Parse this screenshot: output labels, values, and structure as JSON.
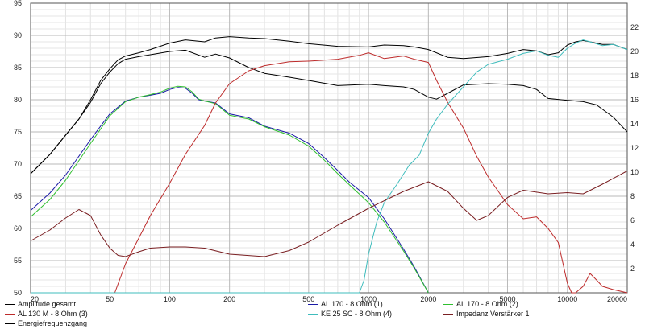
{
  "chart_data": {
    "type": "line",
    "x_scale": "log",
    "xlim": [
      20,
      20000
    ],
    "ylim_left": [
      50,
      95
    ],
    "ylim_right": [
      0,
      24
    ],
    "grid": true,
    "x_ticks": [
      "20",
      "50",
      "100",
      "200",
      "500",
      "1000",
      "2000",
      "5000",
      "10000",
      "20000"
    ],
    "y_ticks_left": [
      "95",
      "90",
      "85",
      "80",
      "75",
      "70",
      "65",
      "60",
      "55",
      "50"
    ],
    "y_ticks_right": [
      "22",
      "20",
      "18",
      "16",
      "14",
      "12",
      "10",
      "8",
      "6",
      "4",
      "2"
    ],
    "series": [
      {
        "name": "Amplitude gesamt",
        "axis": "left",
        "color": "#000000",
        "x": [
          20,
          25,
          30,
          35,
          40,
          45,
          50,
          55,
          60,
          70,
          80,
          100,
          120,
          150,
          170,
          200,
          250,
          300,
          400,
          500,
          700,
          1000,
          1200,
          1500,
          1700,
          2000,
          2500,
          3000,
          4000,
          5000,
          6000,
          7000,
          8000,
          9000,
          10000,
          11000,
          12000,
          13000,
          15000,
          17000,
          20000
        ],
        "y": [
          68.5,
          71.5,
          74.5,
          77,
          80,
          83,
          84.8,
          86.2,
          86.8,
          87.3,
          87.8,
          88.8,
          89.3,
          89,
          89.6,
          89.8,
          89.6,
          89.5,
          89.1,
          88.7,
          88.3,
          88.2,
          88.5,
          88.4,
          88.2,
          87.8,
          86.6,
          86.4,
          86.7,
          87.2,
          87.8,
          87.6,
          87,
          87.3,
          88.5,
          89,
          89.2,
          89,
          88.6,
          88.6,
          87.8
        ]
      },
      {
        "name": "Energiefrequenzgang",
        "axis": "left",
        "color": "#000000",
        "x": [
          20,
          25,
          30,
          35,
          40,
          45,
          50,
          55,
          60,
          70,
          80,
          100,
          120,
          150,
          170,
          200,
          250,
          300,
          400,
          500,
          700,
          1000,
          1200,
          1500,
          1700,
          2000,
          2200,
          2500,
          3000,
          4000,
          5000,
          6000,
          7000,
          8000,
          10000,
          12000,
          14000,
          17000,
          20000
        ],
        "y": [
          68.5,
          71.5,
          74.5,
          77,
          79.6,
          82.5,
          84.3,
          85.6,
          86.3,
          86.7,
          87,
          87.5,
          87.7,
          86.6,
          87.1,
          86.5,
          85,
          84.1,
          83.5,
          83,
          82.2,
          82.4,
          82.2,
          82,
          81.6,
          80.4,
          80.1,
          81,
          82.3,
          82.5,
          82.4,
          82.2,
          81.6,
          80.2,
          79.9,
          79.7,
          79.2,
          77.3,
          75
        ]
      },
      {
        "name": "AL 170 - 8 Ohm (1)",
        "axis": "left",
        "color": "#1a1aa6",
        "x": [
          20,
          25,
          30,
          40,
          50,
          60,
          70,
          80,
          90,
          100,
          110,
          120,
          130,
          140,
          150,
          170,
          200,
          250,
          300,
          400,
          500,
          600,
          700,
          800,
          1000,
          1200,
          1500,
          1700,
          2000
        ],
        "y": [
          62.8,
          65.5,
          68.3,
          73.8,
          77.8,
          79.8,
          80.4,
          80.7,
          81,
          81.6,
          81.9,
          81.8,
          81,
          80,
          79.8,
          79.5,
          77.8,
          77.2,
          75.9,
          74.8,
          73.2,
          71,
          69,
          67.2,
          64.8,
          61.5,
          56.8,
          54,
          50
        ]
      },
      {
        "name": "AL 170 - 8 Ohm (2)",
        "axis": "left",
        "color": "#2fbf2f",
        "x": [
          20,
          25,
          30,
          40,
          50,
          60,
          70,
          80,
          90,
          100,
          110,
          120,
          130,
          140,
          150,
          170,
          200,
          250,
          300,
          400,
          500,
          600,
          700,
          800,
          1000,
          1200,
          1500,
          1700,
          2000
        ],
        "y": [
          61.8,
          64.5,
          67.5,
          73.2,
          77.5,
          79.7,
          80.4,
          80.8,
          81.2,
          81.8,
          82.1,
          82,
          81.2,
          80.1,
          79.8,
          79.4,
          77.6,
          77,
          75.8,
          74.5,
          72.8,
          70.6,
          68.5,
          66.8,
          64,
          61,
          56.5,
          53.8,
          50
        ]
      },
      {
        "name": "AL 130 M - 8 Ohm (3)",
        "axis": "left",
        "color": "#bd2b2b",
        "x": [
          20,
          30,
          40,
          50,
          53,
          60,
          70,
          80,
          100,
          120,
          150,
          170,
          200,
          250,
          300,
          400,
          500,
          700,
          900,
          1000,
          1200,
          1500,
          1700,
          2000,
          2200,
          2500,
          3000,
          3500,
          4000,
          5000,
          6000,
          7000,
          8000,
          9000,
          10000,
          10500,
          11000,
          12000,
          13000,
          14000,
          15000,
          17000,
          20000
        ],
        "y": [
          50,
          50,
          50,
          50,
          50,
          54.5,
          58.5,
          62,
          67,
          71.5,
          76,
          79.5,
          82.5,
          84.5,
          85.3,
          85.9,
          86,
          86.3,
          86.9,
          87.3,
          86.4,
          86.8,
          86.3,
          85.8,
          83,
          79.6,
          75.6,
          71.2,
          68,
          63.7,
          61.5,
          61.8,
          60,
          57.8,
          51.5,
          50,
          50,
          51,
          53,
          52,
          51,
          50.5,
          50
        ]
      },
      {
        "name": "KE 25 SC - 8 Ohm    (4)",
        "axis": "left",
        "color": "#3fbcbc",
        "x": [
          20,
          500,
          900,
          950,
          1000,
          1100,
          1200,
          1400,
          1600,
          1800,
          2000,
          2200,
          2500,
          3000,
          3500,
          4000,
          5000,
          6000,
          7000,
          8000,
          9000,
          10000,
          11000,
          12000,
          13000,
          15000,
          17000,
          20000
        ],
        "y": [
          50,
          50,
          50,
          52,
          56,
          61,
          64,
          67,
          69.8,
          71.4,
          74.8,
          77,
          79.3,
          82,
          84.3,
          85.5,
          86.3,
          87.2,
          87.6,
          86.9,
          86.6,
          88,
          88.8,
          89.3,
          89,
          88.4,
          88.6,
          87.8
        ]
      },
      {
        "name": "Impedanz Verstärker 1",
        "axis": "right",
        "color": "#7a1f22",
        "x": [
          20,
          25,
          30,
          35,
          40,
          45,
          50,
          55,
          60,
          70,
          80,
          100,
          120,
          150,
          200,
          300,
          400,
          500,
          700,
          1000,
          1500,
          2000,
          2500,
          3000,
          3500,
          4000,
          5000,
          6000,
          8000,
          10000,
          12000,
          15000,
          20000
        ],
        "y": [
          4.3,
          5.2,
          6.2,
          6.9,
          6.4,
          4.8,
          3.7,
          3.1,
          3,
          3.4,
          3.7,
          3.8,
          3.8,
          3.7,
          3.2,
          3,
          3.5,
          4.2,
          5.6,
          7,
          8.4,
          9.2,
          8.4,
          7,
          6,
          6.4,
          7.9,
          8.5,
          8.2,
          8.3,
          8.2,
          9,
          10.1
        ]
      }
    ],
    "legend": [
      "Amplitude gesamt",
      "AL 170 - 8 Ohm (1)",
      "AL 170 - 8 Ohm (2)",
      "AL 130 M - 8 Ohm (3)",
      "KE 25 SC - 8 Ohm    (4)",
      "Impedanz Verstärker 1",
      "Energiefrequenzgang"
    ],
    "legend_placement": "bottom"
  }
}
